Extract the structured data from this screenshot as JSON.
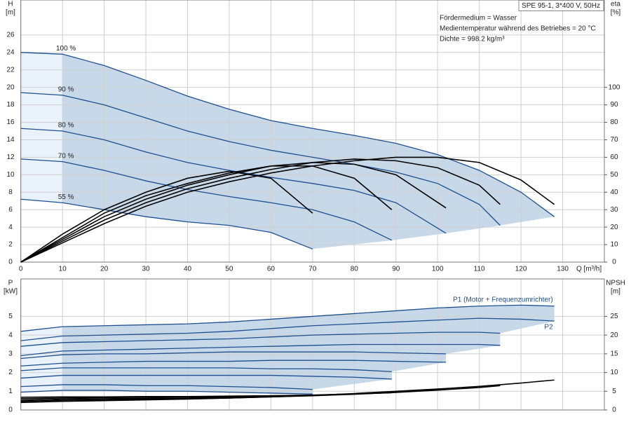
{
  "chart_data": [
    {
      "type": "line",
      "title": "SPE 95-1, 3*400 V, 50Hz",
      "annotations": [
        "Fördermedium = Wasser",
        "Medientemperatur während des Betriebes = 20 °C",
        "Dichte = 998.2 kg/m³"
      ],
      "x_label": "Q [m³/h]",
      "y_label": "H",
      "y_unit": "[m]",
      "y2_label": "eta",
      "y2_unit": "[%]",
      "xlim": [
        0,
        140
      ],
      "xticks": [
        0,
        10,
        20,
        30,
        40,
        50,
        60,
        70,
        80,
        90,
        100,
        110,
        120,
        130
      ],
      "ylim": [
        0,
        30
      ],
      "yticks": [
        0,
        2,
        4,
        6,
        8,
        10,
        12,
        14,
        16,
        18,
        20,
        22,
        24,
        26
      ],
      "y2lim": [
        0,
        150
      ],
      "y2ticks": [
        0,
        10,
        20,
        30,
        40,
        50,
        60,
        70,
        80,
        90,
        100
      ],
      "grid": true,
      "shade_color": "#c7d8e8",
      "shade_light_color": "#e9f2fb",
      "series": [
        {
          "name": "100 %",
          "color": "#1d4f91",
          "x": [
            0,
            10,
            20,
            30,
            40,
            50,
            60,
            70,
            80,
            90,
            100,
            110,
            120,
            128
          ],
          "values": [
            24,
            23.8,
            22.5,
            20.8,
            19,
            17.5,
            16.2,
            15.3,
            14.5,
            13.6,
            12.3,
            10.5,
            8,
            5.2
          ]
        },
        {
          "name": "90 %",
          "color": "#1d4f91",
          "x": [
            0,
            10,
            20,
            30,
            40,
            50,
            60,
            70,
            80,
            90,
            100,
            110,
            115
          ],
          "values": [
            19.4,
            19.1,
            18,
            16.5,
            15,
            13.8,
            12.8,
            12,
            11.2,
            10.3,
            9,
            6.6,
            4.2
          ]
        },
        {
          "name": "80 %",
          "color": "#1d4f91",
          "x": [
            0,
            10,
            20,
            30,
            40,
            50,
            60,
            70,
            80,
            90,
            102
          ],
          "values": [
            15.3,
            15,
            14,
            12.6,
            11.4,
            10.5,
            9.7,
            9,
            8.2,
            6.8,
            3.3
          ]
        },
        {
          "name": "70 %",
          "color": "#1d4f91",
          "x": [
            0,
            10,
            20,
            30,
            40,
            50,
            60,
            70,
            80,
            89
          ],
          "values": [
            11.8,
            11.5,
            10.5,
            9.3,
            8.3,
            7.5,
            6.8,
            6,
            4.6,
            2.5
          ]
        },
        {
          "name": "55 %",
          "color": "#1d4f91",
          "x": [
            0,
            10,
            20,
            30,
            40,
            50,
            60,
            70
          ],
          "values": [
            7.2,
            6.8,
            6,
            5.2,
            4.6,
            4.2,
            3.4,
            1.5
          ]
        },
        {
          "axis": "y2",
          "color": "#000000",
          "x": [
            0,
            10,
            20,
            30,
            40,
            50,
            60,
            70,
            80,
            90,
            100,
            110,
            120,
            128
          ],
          "values": [
            0,
            11,
            22,
            32,
            40,
            46,
            51,
            55,
            58,
            60,
            60,
            57,
            47,
            33
          ]
        },
        {
          "axis": "y2",
          "color": "#000000",
          "x": [
            0,
            10,
            20,
            30,
            40,
            50,
            60,
            70,
            80,
            90,
            100,
            110,
            115
          ],
          "values": [
            0,
            12,
            24,
            34,
            42,
            48,
            53,
            57,
            59,
            58,
            54,
            44,
            33
          ]
        },
        {
          "axis": "y2",
          "color": "#000000",
          "x": [
            0,
            10,
            20,
            30,
            40,
            50,
            60,
            70,
            80,
            90,
            102
          ],
          "values": [
            0,
            13,
            26,
            36,
            44,
            50,
            55,
            57,
            56,
            50,
            31
          ]
        },
        {
          "axis": "y2",
          "color": "#000000",
          "x": [
            0,
            10,
            20,
            30,
            40,
            50,
            60,
            70,
            80,
            89
          ],
          "values": [
            0,
            14,
            28,
            38,
            45,
            51,
            55,
            55,
            48,
            30
          ]
        },
        {
          "axis": "y2",
          "color": "#000000",
          "x": [
            0,
            10,
            20,
            30,
            40,
            50,
            60,
            70
          ],
          "values": [
            0,
            16,
            30,
            40,
            48,
            52,
            48,
            28
          ]
        }
      ]
    },
    {
      "type": "line",
      "y_label": "P",
      "y_unit": "[kW]",
      "y2_label": "NPSH",
      "y2_unit": "[m]",
      "xlim": [
        0,
        140
      ],
      "xticks": [
        0,
        10,
        20,
        30,
        40,
        50,
        60,
        70,
        80,
        90,
        100,
        110,
        120,
        130
      ],
      "ylim": [
        0,
        7
      ],
      "yticks": [
        0,
        1,
        2,
        3,
        4,
        5
      ],
      "y2lim": [
        0,
        35
      ],
      "y2ticks": [
        0,
        5,
        10,
        15,
        20,
        25
      ],
      "grid": true,
      "shade_color": "#c7d8e8",
      "shade_light_color": "#e9f2fb",
      "series": [
        {
          "name": "P1 (Motor + Frequenzumrichter)",
          "color": "#1d4f91",
          "x": [
            0,
            10,
            20,
            30,
            40,
            50,
            60,
            70,
            80,
            90,
            100,
            110,
            120,
            128
          ],
          "values": [
            4.2,
            4.45,
            4.5,
            4.55,
            4.6,
            4.7,
            4.85,
            5.0,
            5.15,
            5.3,
            5.45,
            5.55,
            5.6,
            5.55
          ]
        },
        {
          "name": "P2",
          "color": "#1d4f91",
          "x": [
            0,
            10,
            20,
            30,
            40,
            50,
            60,
            70,
            80,
            90,
            100,
            110,
            120,
            128
          ],
          "values": [
            3.7,
            3.95,
            4.0,
            4.05,
            4.1,
            4.2,
            4.35,
            4.5,
            4.6,
            4.7,
            4.8,
            4.9,
            4.85,
            4.75
          ]
        },
        {
          "color": "#1d4f91",
          "x": [
            0,
            10,
            20,
            30,
            40,
            50,
            60,
            70,
            80,
            90,
            100,
            110,
            115
          ],
          "values": [
            3.4,
            3.6,
            3.65,
            3.7,
            3.75,
            3.8,
            3.9,
            4.0,
            4.05,
            4.1,
            4.15,
            4.15,
            4.1
          ]
        },
        {
          "color": "#1d4f91",
          "x": [
            0,
            10,
            20,
            30,
            40,
            50,
            60,
            70,
            80,
            90,
            100,
            110,
            115
          ],
          "values": [
            2.9,
            3.15,
            3.2,
            3.25,
            3.3,
            3.35,
            3.4,
            3.45,
            3.5,
            3.5,
            3.5,
            3.5,
            3.45
          ]
        },
        {
          "color": "#1d4f91",
          "x": [
            0,
            10,
            20,
            30,
            40,
            50,
            60,
            70,
            80,
            90,
            102
          ],
          "values": [
            2.75,
            2.95,
            3.0,
            3.0,
            3.05,
            3.1,
            3.1,
            3.1,
            3.1,
            3.05,
            3.0
          ]
        },
        {
          "color": "#1d4f91",
          "x": [
            0,
            10,
            20,
            30,
            40,
            50,
            60,
            70,
            80,
            90,
            102
          ],
          "values": [
            2.35,
            2.5,
            2.55,
            2.6,
            2.6,
            2.6,
            2.65,
            2.65,
            2.65,
            2.6,
            2.55
          ]
        },
        {
          "color": "#1d4f91",
          "x": [
            0,
            10,
            20,
            30,
            40,
            50,
            60,
            70,
            80,
            89
          ],
          "values": [
            2.1,
            2.25,
            2.25,
            2.25,
            2.25,
            2.25,
            2.2,
            2.2,
            2.15,
            2.05
          ]
        },
        {
          "color": "#1d4f91",
          "x": [
            0,
            10,
            20,
            30,
            40,
            50,
            60,
            70,
            80,
            89
          ],
          "values": [
            1.7,
            1.85,
            1.85,
            1.85,
            1.85,
            1.85,
            1.85,
            1.8,
            1.75,
            1.65
          ]
        },
        {
          "color": "#1d4f91",
          "x": [
            0,
            10,
            20,
            30,
            40,
            50,
            60,
            70
          ],
          "values": [
            1.25,
            1.35,
            1.35,
            1.3,
            1.3,
            1.25,
            1.2,
            1.1
          ]
        },
        {
          "color": "#1d4f91",
          "x": [
            0,
            10,
            20,
            30,
            40,
            50,
            60,
            70
          ],
          "values": [
            0.95,
            1.05,
            1.05,
            1.0,
            1.0,
            0.95,
            0.9,
            0.85
          ]
        },
        {
          "axis": "y2",
          "color": "#000000",
          "x": [
            0,
            10,
            20,
            30,
            40,
            50,
            60,
            70,
            80,
            90,
            100,
            110,
            120,
            128
          ],
          "values": [
            2.0,
            2.3,
            2.5,
            2.7,
            2.9,
            3.2,
            3.5,
            3.9,
            4.4,
            5.0,
            5.6,
            6.3,
            7.2,
            8.0
          ]
        },
        {
          "axis": "y2",
          "color": "#000000",
          "x": [
            0,
            10,
            20,
            30,
            40,
            50,
            60,
            70,
            80,
            90,
            100,
            110,
            115
          ],
          "values": [
            2.3,
            2.6,
            2.7,
            2.9,
            3.0,
            3.2,
            3.5,
            3.8,
            4.2,
            4.7,
            5.3,
            6.0,
            6.5
          ]
        },
        {
          "axis": "y2",
          "color": "#000000",
          "x": [
            0,
            10,
            20,
            30,
            40,
            50,
            60,
            70,
            80,
            90,
            102
          ],
          "values": [
            2.6,
            2.9,
            3.0,
            3.1,
            3.2,
            3.4,
            3.6,
            3.9,
            4.3,
            4.8,
            5.5
          ]
        },
        {
          "axis": "y2",
          "color": "#000000",
          "x": [
            0,
            10,
            20,
            30,
            40,
            50,
            60,
            70,
            80,
            89
          ],
          "values": [
            3.0,
            3.2,
            3.3,
            3.4,
            3.5,
            3.6,
            3.8,
            4.0,
            4.3,
            4.6
          ]
        },
        {
          "axis": "y2",
          "color": "#000000",
          "x": [
            0,
            10,
            20,
            30,
            40,
            50,
            60,
            70
          ],
          "values": [
            3.4,
            3.5,
            3.5,
            3.6,
            3.6,
            3.7,
            3.8,
            3.9
          ]
        }
      ]
    }
  ]
}
